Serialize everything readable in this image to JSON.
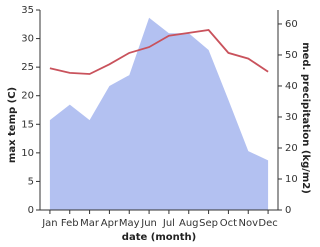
{
  "chart_data": {
    "type": "line-area",
    "categories": [
      "Jan",
      "Feb",
      "Mar",
      "Apr",
      "May",
      "Jun",
      "Jul",
      "Aug",
      "Sep",
      "Oct",
      "Nov",
      "Dec"
    ],
    "x_label": "date (month)",
    "y_label": "max temp (C)",
    "y2_label": "med. precipitation (kg/m2)",
    "ylim": [
      0,
      35
    ],
    "yticks": [
      0,
      5,
      10,
      15,
      20,
      25,
      30,
      35
    ],
    "y2lim": [
      0,
      64.5
    ],
    "y2ticks": [
      0,
      10,
      20,
      30,
      40,
      50,
      60
    ],
    "series": [
      {
        "name": "med. precipitation",
        "type": "area",
        "axis": "y2",
        "color": "#b3c1f1",
        "values": [
          29,
          34,
          29,
          40,
          43.5,
          62,
          57,
          57,
          51.6,
          35.5,
          19,
          16
        ]
      },
      {
        "name": "max temp",
        "type": "line",
        "color": "#c9525c",
        "values": [
          24.8,
          24,
          23.8,
          25.5,
          27.5,
          28.5,
          30.5,
          31,
          31.5,
          27.5,
          26.5,
          24.2
        ]
      }
    ]
  }
}
